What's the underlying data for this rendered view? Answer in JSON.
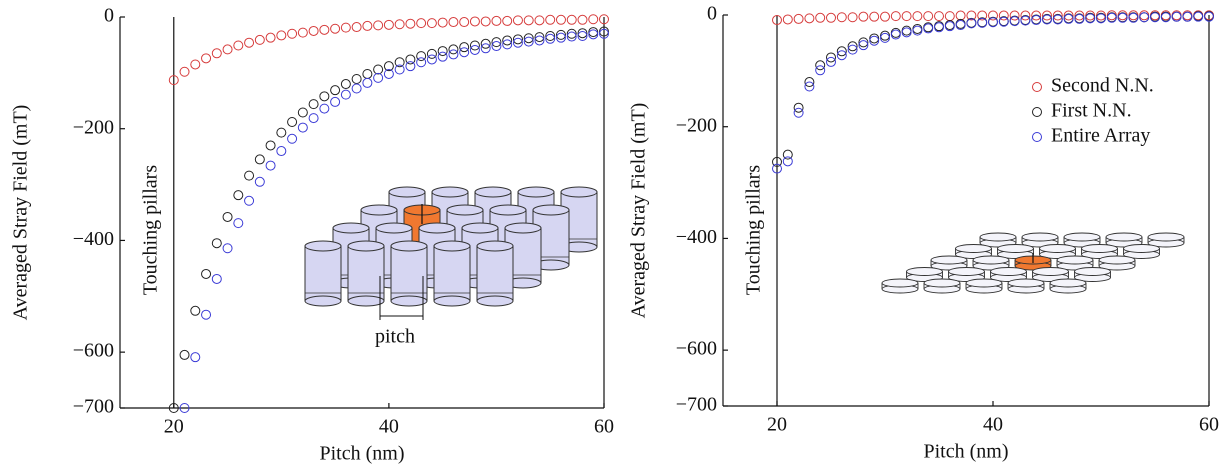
{
  "chart_data": [
    {
      "type": "scatter",
      "x_label": "Pitch (nm)",
      "y_label": "Averaged Stray Field (mT)",
      "annotation": "Touching pillars",
      "inset_label": "pitch",
      "vline": 20,
      "xlim": [
        15,
        60
      ],
      "xticks": [
        20,
        40,
        60
      ],
      "ylim": [
        -700,
        0
      ],
      "yticks": [
        {
          "value": -700,
          "label": "−700"
        },
        {
          "value": -600,
          "label": "−600"
        },
        {
          "value": -400,
          "label": "−400"
        },
        {
          "value": -200,
          "label": "−200"
        },
        0
      ],
      "x": [
        20,
        21,
        22,
        23,
        24,
        25,
        26,
        27,
        28,
        29,
        30,
        31,
        32,
        33,
        34,
        35,
        36,
        37,
        38,
        39,
        40,
        41,
        42,
        43,
        44,
        45,
        46,
        47,
        48,
        49,
        50,
        51,
        52,
        53,
        54,
        55,
        56,
        57,
        58,
        59,
        60
      ],
      "series": [
        {
          "name": "Second N.N.",
          "color": "#d63b3b",
          "values": [
            -113,
            -98,
            -85,
            -74,
            -65,
            -58,
            -51,
            -46,
            -41,
            -37,
            -33,
            -30,
            -28,
            -25,
            -23,
            -21,
            -19,
            -18,
            -16,
            -15,
            -14,
            -13,
            -12,
            -11,
            -11,
            -10,
            -9,
            -9,
            -8,
            -8,
            -7,
            -7,
            -6,
            -6,
            -6,
            -5,
            -5,
            -5,
            -5,
            -4,
            -4
          ]
        },
        {
          "name": "First N.N.",
          "color": "#222222",
          "values": [
            -700,
            -605,
            -526,
            -460,
            -405,
            -358,
            -319,
            -284,
            -255,
            -230,
            -207,
            -188,
            -171,
            -156,
            -142,
            -131,
            -120,
            -111,
            -102,
            -94,
            -88,
            -81,
            -76,
            -70,
            -66,
            -61,
            -58,
            -54,
            -51,
            -48,
            -45,
            -42,
            -40,
            -38,
            -36,
            -34,
            -32,
            -30,
            -29,
            -27,
            -26
          ]
        },
        {
          "name": "Entire Array",
          "color": "#3b3bd6",
          "values": [
            null,
            -700,
            -609,
            -533,
            -469,
            -414,
            -369,
            -329,
            -295,
            -266,
            -240,
            -218,
            -198,
            -181,
            -164,
            -152,
            -139,
            -128,
            -118,
            -109,
            -102,
            -94,
            -88,
            -81,
            -76,
            -71,
            -67,
            -63,
            -59,
            -56,
            -52,
            -49,
            -46,
            -44,
            -42,
            -39,
            -37,
            -35,
            -34,
            -31,
            -30
          ]
        }
      ]
    },
    {
      "type": "scatter",
      "x_label": "Pitch (nm)",
      "y_label": "Averaged Stray Field (mT)",
      "annotation": "Touching pillars",
      "vline": 20,
      "legend": "upper right",
      "xlim": [
        15,
        60
      ],
      "xticks": [
        20,
        40,
        60
      ],
      "ylim": [
        -700,
        0
      ],
      "yticks": [
        {
          "value": -700,
          "label": "−700"
        },
        {
          "value": -600,
          "label": "−600"
        },
        {
          "value": -400,
          "label": "−400"
        },
        {
          "value": -200,
          "label": "−200"
        },
        0
      ],
      "x": [
        20,
        21,
        22,
        23,
        24,
        25,
        26,
        27,
        28,
        29,
        30,
        31,
        32,
        33,
        34,
        35,
        36,
        37,
        38,
        39,
        40,
        41,
        42,
        43,
        44,
        45,
        46,
        47,
        48,
        49,
        50,
        51,
        52,
        53,
        54,
        55,
        56,
        57,
        58,
        59,
        60
      ],
      "series": [
        {
          "name": "Second N.N.",
          "color": "#d63b3b",
          "values": [
            -9,
            -8,
            -7,
            -6,
            -5,
            -5,
            -4,
            -4,
            -3,
            -3,
            -3,
            -2,
            -2,
            -2,
            -2,
            -2,
            -2,
            -1,
            -1,
            -1,
            -1,
            -1,
            -1,
            -1,
            -1,
            -1,
            -1,
            -1,
            -1,
            -1,
            -1,
            -0.5,
            -0.5,
            -0.5,
            -0.5,
            -0.5,
            -0.5,
            -0.5,
            -0.5,
            -0.5,
            -0.5
          ]
        },
        {
          "name": "First N.N.",
          "color": "#222222",
          "values": [
            -263,
            -250,
            -166,
            -120,
            -90,
            -76,
            -65,
            -56,
            -49,
            -42,
            -37,
            -32,
            -28,
            -25,
            -22,
            -20,
            -18,
            -16,
            -14,
            -13,
            -12,
            -11,
            -10,
            -9,
            -8,
            -7,
            -7,
            -6,
            -6,
            -5,
            -5,
            -4,
            -4,
            -4,
            -4,
            -3,
            -3,
            -3,
            -3,
            -2,
            -2
          ]
        },
        {
          "name": "Entire Array",
          "color": "#3b3bd6",
          "values": [
            -275,
            -262,
            -175,
            -128,
            -99,
            -84,
            -72,
            -62,
            -54,
            -46,
            -41,
            -35,
            -31,
            -28,
            -24,
            -22,
            -20,
            -18,
            -15,
            -14,
            -13,
            -12,
            -11,
            -10,
            -9,
            -8,
            -8,
            -7,
            -7,
            -6,
            -6,
            -5,
            -5,
            -5,
            -4,
            -4,
            -4,
            -3,
            -3,
            -3,
            -3
          ]
        }
      ]
    }
  ]
}
